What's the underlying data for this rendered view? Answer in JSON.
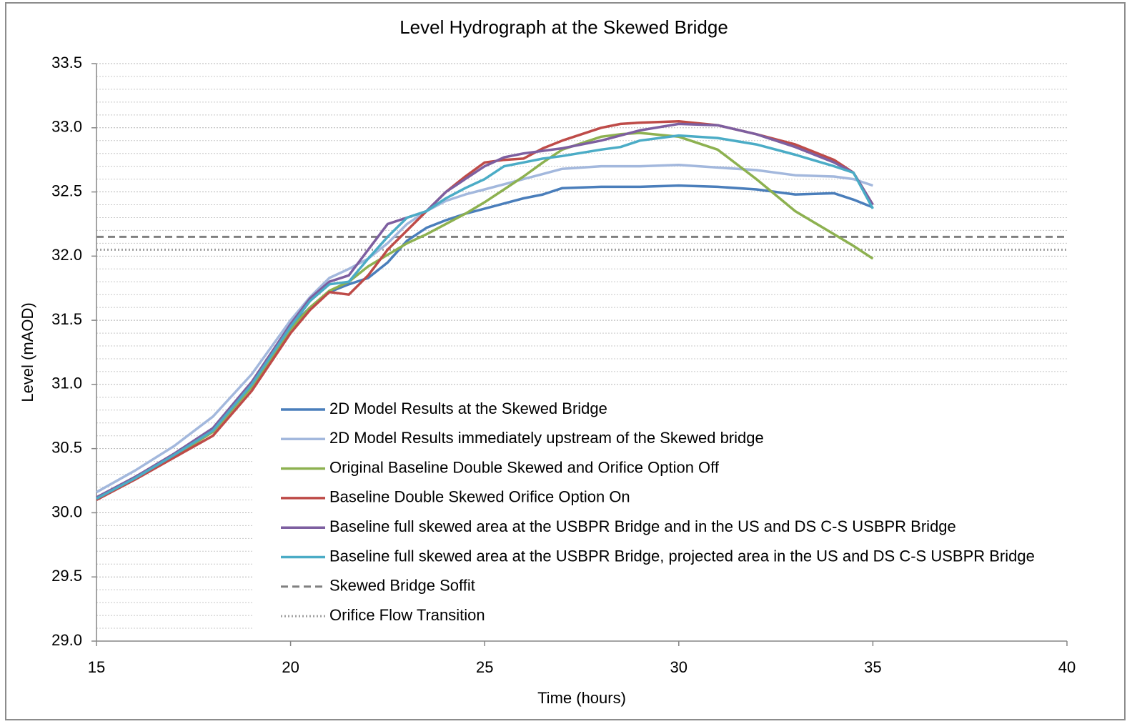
{
  "chart_data": {
    "type": "line",
    "title": "Level Hydrograph at the Skewed Bridge",
    "xlabel": "Time (hours)",
    "ylabel": "Level (mAOD)",
    "xlim": [
      15,
      40
    ],
    "xticks": [
      15,
      20,
      25,
      30,
      35,
      40
    ],
    "ylim": [
      29,
      33.5
    ],
    "yticks": [
      {
        "value": 29,
        "label": "29.0"
      },
      29.5,
      {
        "value": 30,
        "label": "30.0"
      },
      30.5,
      {
        "value": 31,
        "label": "31.0"
      },
      31.5,
      {
        "value": 32,
        "label": "32.0"
      },
      32.5,
      {
        "value": 33,
        "label": "33.0"
      },
      33.5
    ],
    "yminorticks": [
      29.1,
      29.2,
      29.3,
      29.4,
      29.6,
      29.7,
      29.8,
      29.9,
      30.1,
      30.2,
      30.3,
      30.4,
      30.6,
      30.7,
      30.8,
      30.9,
      31.1,
      31.2,
      31.3,
      31.4,
      31.6,
      31.7,
      31.8,
      31.9,
      32.1,
      32.2,
      32.3,
      32.4,
      32.6,
      32.7,
      32.8,
      32.9,
      33.1,
      33.2,
      33.3,
      33.4
    ],
    "grid": true,
    "x": [
      15,
      16,
      17,
      18,
      19,
      20,
      20.5,
      21,
      21.5,
      22,
      22.5,
      23,
      23.5,
      24,
      24.5,
      25,
      25.5,
      26,
      26.5,
      27,
      28,
      28.5,
      29,
      30,
      31,
      32,
      33,
      34,
      34.5,
      35
    ],
    "series": [
      {
        "name": "2D Model Results at the Skewed Bridge",
        "color": "#4a7ebb",
        "values": [
          30.11,
          30.28,
          30.45,
          30.65,
          31.0,
          31.45,
          31.6,
          31.72,
          31.78,
          31.83,
          31.95,
          32.12,
          32.22,
          32.28,
          32.33,
          32.37,
          32.41,
          32.45,
          32.48,
          32.53,
          32.54,
          32.54,
          32.54,
          32.55,
          32.54,
          32.52,
          32.48,
          32.49,
          32.44,
          32.38
        ]
      },
      {
        "name": "2D Model Results immediately upstream of the Skewed bridge",
        "color": "#a3b8dd",
        "values": [
          30.16,
          30.33,
          30.52,
          30.75,
          31.08,
          31.5,
          31.68,
          31.83,
          31.9,
          31.98,
          32.1,
          32.25,
          32.35,
          32.43,
          32.48,
          32.52,
          32.56,
          32.6,
          32.64,
          32.68,
          32.7,
          32.7,
          32.7,
          32.71,
          32.69,
          32.67,
          32.63,
          32.62,
          32.6,
          32.55
        ]
      },
      {
        "name": "Original Baseline Double Skewed and Orifice Option Off",
        "color": "#8db150",
        "values": [
          30.11,
          30.27,
          30.44,
          30.63,
          30.98,
          31.43,
          31.6,
          31.73,
          31.8,
          31.92,
          32.01,
          32.1,
          32.17,
          32.25,
          32.33,
          32.42,
          32.52,
          32.62,
          32.73,
          32.83,
          32.93,
          32.95,
          32.96,
          32.93,
          32.83,
          32.6,
          32.35,
          32.17,
          32.08,
          31.98
        ]
      },
      {
        "name": "Baseline Double Skewed Orifice Option On",
        "color": "#be4b48",
        "values": [
          30.1,
          30.26,
          30.43,
          30.6,
          30.95,
          31.4,
          31.58,
          31.72,
          31.7,
          31.85,
          32.05,
          32.2,
          32.35,
          32.5,
          32.62,
          32.73,
          32.75,
          32.76,
          32.84,
          32.9,
          33.0,
          33.03,
          33.04,
          33.05,
          33.02,
          32.95,
          32.87,
          32.75,
          32.65,
          32.4
        ]
      },
      {
        "name": "Baseline full skewed area at the USBPR Bridge and in the US and DS C-S USBPR Bridge",
        "color": "#7d5fa0",
        "values": [
          30.12,
          30.28,
          30.46,
          30.66,
          31.02,
          31.47,
          31.67,
          31.8,
          31.85,
          32.05,
          32.25,
          32.3,
          32.35,
          32.5,
          32.6,
          32.7,
          32.77,
          32.8,
          32.82,
          32.84,
          32.9,
          32.94,
          32.98,
          33.03,
          33.02,
          32.95,
          32.85,
          32.73,
          32.65,
          32.4
        ]
      },
      {
        "name": "Baseline full skewed area at the USBPR Bridge, projected area in the US and DS C-S USBPR Bridge",
        "color": "#4bacc6",
        "values": [
          30.11,
          30.27,
          30.45,
          30.64,
          31.0,
          31.45,
          31.65,
          31.78,
          31.8,
          31.98,
          32.15,
          32.3,
          32.35,
          32.45,
          32.53,
          32.6,
          32.7,
          32.73,
          32.76,
          32.78,
          32.83,
          32.85,
          32.9,
          32.94,
          32.92,
          32.87,
          32.79,
          32.7,
          32.65,
          32.37
        ]
      }
    ],
    "reference_lines": [
      {
        "name": "Skewed Bridge Soffit",
        "color": "#808080",
        "value": 32.15,
        "style": "dashed"
      },
      {
        "name": "Orifice Flow Transition",
        "color": "#a0a0a0",
        "value": 32.05,
        "style": "dotted"
      }
    ]
  }
}
